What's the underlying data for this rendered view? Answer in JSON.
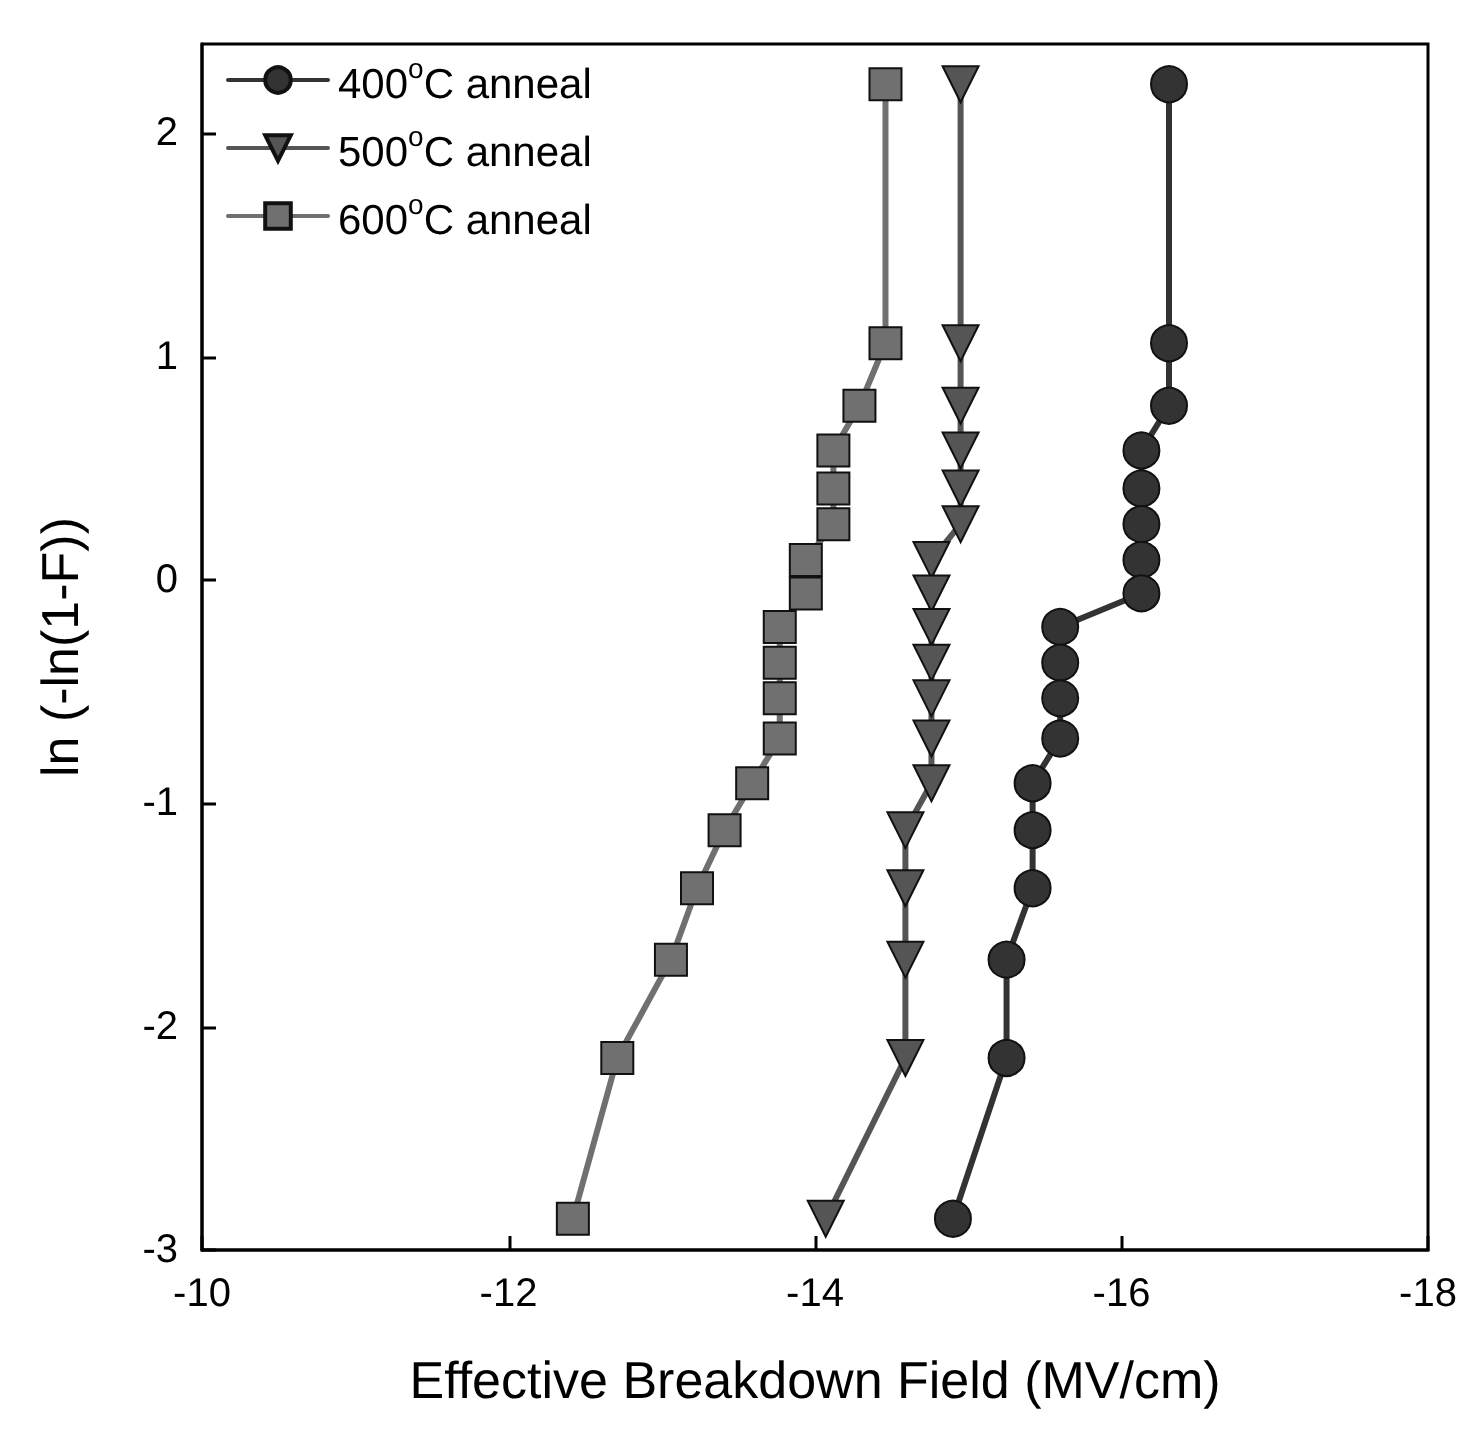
{
  "chart_data": {
    "type": "line",
    "xlabel": "Effective Breakdown Field (MV/cm)",
    "ylabel": "ln (-ln(1-F))",
    "xlim": [
      -10,
      -18
    ],
    "xticks": [
      -10,
      -12,
      -14,
      -16,
      -18
    ],
    "ylim": [
      -3,
      2.4
    ],
    "yticks": [
      -3,
      -2,
      -1,
      0,
      1,
      2
    ],
    "grid": false,
    "legend": "top left",
    "line_style": "solid",
    "series": [
      {
        "name": "400$^{o}$C anneal",
        "color": "#333333",
        "marker": "circle",
        "x": [
          -16.31,
          -16.31,
          -16.31,
          -16.13,
          -16.13,
          -16.13,
          -16.13,
          -16.13,
          -15.6,
          -15.6,
          -15.6,
          -15.6,
          -15.42,
          -15.42,
          -15.42,
          -15.25,
          -15.25,
          -14.9
        ],
        "values": [
          2.22,
          1.06,
          0.78,
          0.58,
          0.41,
          0.25,
          0.09,
          -0.06,
          -0.21,
          -0.37,
          -0.53,
          -0.71,
          -0.91,
          -1.12,
          -1.38,
          -1.7,
          -2.14,
          -2.86
        ]
      },
      {
        "name": "500$^{o}$C anneal",
        "color": "#555555",
        "marker": "triangle",
        "x": [
          -14.95,
          -14.95,
          -14.95,
          -14.95,
          -14.95,
          -14.95,
          -14.76,
          -14.76,
          -14.76,
          -14.76,
          -14.76,
          -14.76,
          -14.76,
          -14.59,
          -14.59,
          -14.59,
          -14.59,
          -14.07
        ],
        "values": [
          2.22,
          1.06,
          0.78,
          0.58,
          0.41,
          0.25,
          0.09,
          -0.06,
          -0.21,
          -0.37,
          -0.53,
          -0.71,
          -0.91,
          -1.12,
          -1.38,
          -1.7,
          -2.14,
          -2.86
        ]
      },
      {
        "name": "600$^{o}$C anneal",
        "color": "#707070",
        "marker": "square",
        "x": [
          -14.46,
          -14.46,
          -14.29,
          -14.12,
          -14.12,
          -14.12,
          -13.94,
          -13.94,
          -13.77,
          -13.77,
          -13.77,
          -13.77,
          -13.59,
          -13.41,
          -13.23,
          -13.06,
          -12.71,
          -12.42
        ],
        "values": [
          2.22,
          1.06,
          0.78,
          0.58,
          0.41,
          0.25,
          0.09,
          -0.06,
          -0.21,
          -0.37,
          -0.53,
          -0.71,
          -0.91,
          -1.12,
          -1.38,
          -1.7,
          -2.14,
          -2.86
        ]
      }
    ]
  }
}
